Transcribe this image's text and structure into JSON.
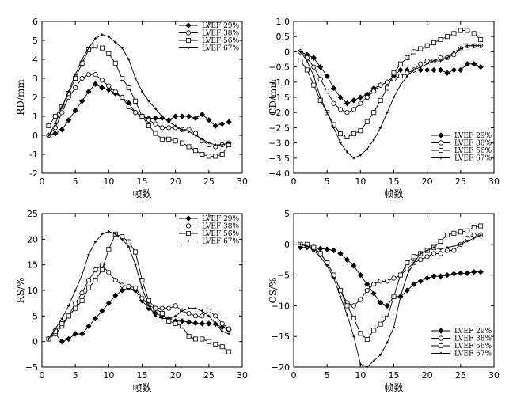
{
  "chart_data": [
    {
      "type": "line",
      "xlabel": "帧数",
      "ylabel": "RD/mm",
      "xlim": [
        0,
        30
      ],
      "ylim": [
        -2,
        6
      ],
      "xticks": [
        0,
        5,
        10,
        15,
        20,
        25,
        30
      ],
      "yticks": [
        -2,
        -1,
        0,
        1,
        2,
        3,
        4,
        5,
        6
      ],
      "legend_position": "top-right",
      "series": [
        {
          "name": "LVEF 29%",
          "marker": "filled-diamond",
          "x": [
            1,
            2,
            3,
            4,
            5,
            6,
            7,
            8,
            9,
            10,
            11,
            12,
            13,
            14,
            15,
            16,
            17,
            18,
            19,
            20,
            21,
            22,
            23,
            24,
            25,
            26,
            27,
            28
          ],
          "y": [
            0,
            0.1,
            0.3,
            0.8,
            1.3,
            1.8,
            2.3,
            2.7,
            2.5,
            2.4,
            2.2,
            2.0,
            1.7,
            1.2,
            1.0,
            0.9,
            0.9,
            0.9,
            0.8,
            1.0,
            1.0,
            1.0,
            0.9,
            1.1,
            0.8,
            0.5,
            0.6,
            0.7
          ]
        },
        {
          "name": "LVEF 38%",
          "marker": "open-circle",
          "x": [
            1,
            2,
            3,
            4,
            5,
            6,
            7,
            8,
            9,
            10,
            11,
            12,
            13,
            14,
            15,
            16,
            17,
            18,
            19,
            20,
            21,
            22,
            23,
            24,
            25,
            26,
            27,
            28
          ],
          "y": [
            0,
            0.4,
            1.2,
            2.0,
            2.5,
            3.0,
            3.2,
            3.2,
            2.9,
            2.6,
            2.3,
            2.0,
            1.5,
            1.2,
            1.0,
            0.8,
            0.6,
            0.4,
            0.4,
            0.4,
            0.3,
            0.3,
            0.1,
            -0.3,
            -0.5,
            -0.6,
            -0.5,
            -0.4
          ]
        },
        {
          "name": "LVEF 56%",
          "marker": "open-square",
          "x": [
            1,
            2,
            3,
            4,
            5,
            6,
            7,
            8,
            9,
            10,
            11,
            12,
            13,
            14,
            15,
            16,
            17,
            18,
            19,
            20,
            21,
            22,
            23,
            24,
            25,
            26,
            27,
            28
          ],
          "y": [
            0.5,
            1.0,
            1.5,
            2.2,
            3.0,
            3.8,
            4.5,
            4.7,
            4.6,
            4.3,
            3.8,
            3.0,
            2.5,
            1.8,
            1.0,
            0.5,
            0.1,
            -0.2,
            -0.2,
            -0.3,
            -0.4,
            -0.6,
            -0.8,
            -1.0,
            -1.1,
            -1.1,
            -1.0,
            -0.5
          ]
        },
        {
          "name": "LVEF 67%",
          "marker": "plus",
          "x": [
            1,
            2,
            3,
            4,
            5,
            6,
            7,
            8,
            9,
            10,
            11,
            12,
            13,
            14,
            15,
            16,
            17,
            18,
            19,
            20,
            21,
            22,
            23,
            24,
            25,
            26,
            27,
            28
          ],
          "y": [
            0,
            0.6,
            1.5,
            2.3,
            3.2,
            4.0,
            4.6,
            5.1,
            5.3,
            5.2,
            4.9,
            4.6,
            4.0,
            3.0,
            2.3,
            1.8,
            1.4,
            1.0,
            0.7,
            0.5,
            0.3,
            0.2,
            0.0,
            -0.2,
            -0.4,
            -0.5,
            -0.5,
            -0.4
          ]
        }
      ]
    },
    {
      "type": "line",
      "xlabel": "帧数",
      "ylabel": "CD/mm",
      "xlim": [
        0,
        30
      ],
      "ylim": [
        -4,
        1
      ],
      "xticks": [
        0,
        5,
        10,
        15,
        20,
        25,
        30
      ],
      "yticks": [
        -4.0,
        -3.5,
        -3.0,
        -2.5,
        -2.0,
        -1.5,
        -1.0,
        -0.5,
        0,
        0.5,
        1.0
      ],
      "ytick_labels": [
        "−4.0",
        "−3.5",
        "−3.0",
        "−2.5",
        "−2.0",
        "−1.5",
        "−1.0",
        "−0.5",
        "0",
        "0.5",
        "1.0"
      ],
      "legend_position": "bottom-right",
      "series": [
        {
          "name": "LVEF 29%",
          "marker": "filled-diamond",
          "x": [
            1,
            2,
            3,
            4,
            5,
            6,
            7,
            8,
            9,
            10,
            11,
            12,
            13,
            14,
            15,
            16,
            17,
            18,
            19,
            20,
            21,
            22,
            23,
            24,
            25,
            26,
            27,
            28
          ],
          "y": [
            0,
            -0.1,
            -0.2,
            -0.5,
            -0.8,
            -1.2,
            -1.5,
            -1.7,
            -1.6,
            -1.5,
            -1.4,
            -1.2,
            -1.1,
            -1.0,
            -0.8,
            -0.6,
            -0.6,
            -0.6,
            -0.6,
            -0.6,
            -0.6,
            -0.6,
            -0.7,
            -0.6,
            -0.6,
            -0.4,
            -0.4,
            -0.5
          ]
        },
        {
          "name": "LVEF 38%",
          "marker": "open-circle",
          "x": [
            1,
            2,
            3,
            4,
            5,
            6,
            7,
            8,
            9,
            10,
            11,
            12,
            13,
            14,
            15,
            16,
            17,
            18,
            19,
            20,
            21,
            22,
            23,
            24,
            25,
            26,
            27,
            28
          ],
          "y": [
            0,
            -0.2,
            -0.5,
            -0.9,
            -1.3,
            -1.7,
            -1.9,
            -2.0,
            -1.9,
            -1.7,
            -1.5,
            -1.3,
            -1.1,
            -1.0,
            -0.9,
            -0.8,
            -0.7,
            -0.6,
            -0.4,
            -0.3,
            -0.3,
            -0.2,
            -0.2,
            -0.1,
            0.1,
            0.2,
            0.2,
            0.2
          ]
        },
        {
          "name": "LVEF 56%",
          "marker": "open-square",
          "x": [
            1,
            2,
            3,
            4,
            5,
            6,
            7,
            8,
            9,
            10,
            11,
            12,
            13,
            14,
            15,
            16,
            17,
            18,
            19,
            20,
            21,
            22,
            23,
            24,
            25,
            26,
            27,
            28
          ],
          "y": [
            -0.3,
            -0.6,
            -1.1,
            -1.6,
            -2.0,
            -2.4,
            -2.7,
            -2.8,
            -2.7,
            -2.6,
            -2.3,
            -2.0,
            -1.6,
            -1.2,
            -0.7,
            -0.4,
            -0.2,
            0.0,
            0.1,
            0.2,
            0.3,
            0.4,
            0.5,
            0.6,
            0.7,
            0.7,
            0.6,
            0.4
          ]
        },
        {
          "name": "LVEF 67%",
          "marker": "plus",
          "x": [
            1,
            2,
            3,
            4,
            5,
            6,
            7,
            8,
            9,
            10,
            11,
            12,
            13,
            14,
            15,
            16,
            17,
            18,
            19,
            20,
            21,
            22,
            23,
            24,
            25,
            26,
            27,
            28
          ],
          "y": [
            0,
            -0.3,
            -0.8,
            -1.5,
            -2.0,
            -2.5,
            -3.0,
            -3.3,
            -3.5,
            -3.4,
            -3.2,
            -2.9,
            -2.5,
            -2.0,
            -1.5,
            -1.1,
            -0.8,
            -0.6,
            -0.5,
            -0.4,
            -0.3,
            -0.3,
            -0.2,
            0.0,
            0.1,
            0.2,
            0.2,
            0.2
          ]
        }
      ]
    },
    {
      "type": "line",
      "xlabel": "帧数",
      "ylabel": "RS/%",
      "xlim": [
        0,
        30
      ],
      "ylim": [
        -5,
        25
      ],
      "xticks": [
        0,
        5,
        10,
        15,
        20,
        25,
        30
      ],
      "yticks": [
        -5,
        0,
        5,
        10,
        15,
        20,
        25
      ],
      "ytick_labels": [
        "−5",
        "0",
        "5",
        "10",
        "15",
        "20",
        "25"
      ],
      "legend_position": "top-right",
      "series": [
        {
          "name": "LVEF 29%",
          "marker": "filled-diamond",
          "x": [
            1,
            2,
            3,
            4,
            5,
            6,
            7,
            8,
            9,
            10,
            11,
            12,
            13,
            14,
            15,
            16,
            17,
            18,
            19,
            20,
            21,
            22,
            23,
            24,
            25,
            26,
            27,
            28
          ],
          "y": [
            0.5,
            1.5,
            0,
            0.5,
            1.5,
            1.5,
            3.0,
            4.5,
            6.0,
            7.5,
            9.0,
            10.0,
            10.5,
            10.0,
            8.0,
            6.5,
            5.5,
            5.0,
            4.5,
            4.0,
            4.0,
            3.8,
            3.6,
            3.5,
            3.5,
            3.4,
            2.8,
            2.3
          ]
        },
        {
          "name": "LVEF 38%",
          "marker": "open-circle",
          "x": [
            1,
            2,
            3,
            4,
            5,
            6,
            7,
            8,
            9,
            10,
            11,
            12,
            13,
            14,
            15,
            16,
            17,
            18,
            19,
            20,
            21,
            22,
            23,
            24,
            25,
            26,
            27,
            28
          ],
          "y": [
            0.5,
            1.5,
            3.0,
            5.0,
            7.5,
            9.5,
            12.0,
            14.0,
            15.0,
            13.5,
            12.0,
            11.0,
            10.8,
            10.5,
            8.5,
            7.0,
            6.5,
            6.5,
            6.5,
            7.0,
            6.0,
            5.5,
            5.0,
            5.0,
            6.0,
            5.0,
            3.5,
            2.5
          ]
        },
        {
          "name": "LVEF 56%",
          "marker": "open-square",
          "x": [
            1,
            2,
            3,
            4,
            5,
            6,
            7,
            8,
            9,
            10,
            11,
            12,
            13,
            14,
            15,
            16,
            17,
            18,
            19,
            20,
            21,
            22,
            23,
            24,
            25,
            26,
            27,
            28
          ],
          "y": [
            0.5,
            2.0,
            3.5,
            5.0,
            6.5,
            8.0,
            10.5,
            12.0,
            14.0,
            18.0,
            21.0,
            20.5,
            19.5,
            17.5,
            12.0,
            8.0,
            6.5,
            5.5,
            4.0,
            3.5,
            3.0,
            1.0,
            0.5,
            0.5,
            0,
            -0.5,
            -1.0,
            -2.0
          ]
        },
        {
          "name": "LVEF 67%",
          "marker": "plus",
          "x": [
            1,
            2,
            3,
            4,
            5,
            6,
            7,
            8,
            9,
            10,
            11,
            12,
            13,
            14,
            15,
            16,
            17,
            18,
            19,
            20,
            21,
            22,
            23,
            24,
            25,
            26,
            27,
            28
          ],
          "y": [
            0.5,
            2.5,
            4.5,
            7.0,
            10.0,
            13.0,
            17.0,
            19.5,
            21.0,
            21.5,
            21.0,
            20.0,
            18.5,
            15.0,
            10.5,
            7.0,
            5.0,
            4.5,
            4.5,
            5.0,
            6.0,
            6.5,
            6.5,
            6.0,
            5.0,
            3.5,
            2.0,
            1.5
          ]
        }
      ]
    },
    {
      "type": "line",
      "xlabel": "帧数",
      "ylabel": "CS/%",
      "xlim": [
        0,
        30
      ],
      "ylim": [
        -20,
        5
      ],
      "xticks": [
        0,
        5,
        10,
        15,
        20,
        25,
        30
      ],
      "yticks": [
        -20,
        -15,
        -10,
        -5,
        0,
        5
      ],
      "ytick_labels": [
        "−20",
        "−15",
        "−10",
        "−5",
        "0",
        "5"
      ],
      "legend_position": "bottom-right",
      "series": [
        {
          "name": "LVEF 29%",
          "marker": "filled-diamond",
          "x": [
            1,
            2,
            3,
            4,
            5,
            6,
            7,
            8,
            9,
            10,
            11,
            12,
            13,
            14,
            15,
            16,
            17,
            18,
            19,
            20,
            21,
            22,
            23,
            24,
            25,
            26,
            27,
            28
          ],
          "y": [
            -0.5,
            -0.5,
            -0.5,
            -0.7,
            -0.8,
            -1.0,
            -1.5,
            -2.5,
            -3.5,
            -5.0,
            -6.5,
            -8.0,
            -9.5,
            -10.0,
            -8.5,
            -8.5,
            -7.5,
            -6.5,
            -6.0,
            -5.5,
            -5.2,
            -5.2,
            -5.0,
            -4.8,
            -4.7,
            -4.7,
            -4.5,
            -4.5
          ]
        },
        {
          "name": "LVEF 38%",
          "marker": "open-circle",
          "x": [
            1,
            2,
            3,
            4,
            5,
            6,
            7,
            8,
            9,
            10,
            11,
            12,
            13,
            14,
            15,
            16,
            17,
            18,
            19,
            20,
            21,
            22,
            23,
            24,
            25,
            26,
            27,
            28
          ],
          "y": [
            0,
            -0.3,
            -0.8,
            -1.5,
            -3.0,
            -5.0,
            -7.5,
            -9.5,
            -10.0,
            -9.0,
            -7.5,
            -6.5,
            -6.0,
            -6.0,
            -5.5,
            -5.0,
            -4.0,
            -3.0,
            -2.5,
            -2.0,
            -1.5,
            -1.5,
            -1.0,
            -1.0,
            0,
            1.0,
            1.5,
            1.5
          ]
        },
        {
          "name": "LVEF 56%",
          "marker": "open-square",
          "x": [
            1,
            2,
            3,
            4,
            5,
            6,
            7,
            8,
            9,
            10,
            11,
            12,
            13,
            14,
            15,
            16,
            17,
            18,
            19,
            20,
            21,
            22,
            23,
            24,
            25,
            26,
            27,
            28
          ],
          "y": [
            0,
            0,
            -0.5,
            -1.5,
            -3.0,
            -5.0,
            -7.5,
            -10.0,
            -12.0,
            -14.5,
            -15.5,
            -14.0,
            -13.0,
            -12.0,
            -8.5,
            -5.0,
            -3.0,
            -2.0,
            -1.5,
            -1.0,
            -0.5,
            0.5,
            1.5,
            1.8,
            2.0,
            2.2,
            2.8,
            3.0
          ]
        },
        {
          "name": "LVEF 67%",
          "marker": "plus",
          "x": [
            1,
            2,
            3,
            4,
            5,
            6,
            7,
            8,
            9,
            10,
            11,
            12,
            13,
            14,
            15,
            16,
            17,
            18,
            19,
            20,
            21,
            22,
            23,
            24,
            25,
            26,
            27,
            28
          ],
          "y": [
            0,
            -0.3,
            -1.0,
            -2.0,
            -3.5,
            -5.5,
            -8.5,
            -11.5,
            -15.0,
            -19.5,
            -20.0,
            -19.0,
            -18.0,
            -16.0,
            -13.5,
            -8.5,
            -5.0,
            -3.0,
            -1.5,
            -1.0,
            -0.5,
            -0.8,
            -0.5,
            -0.3,
            0,
            0.5,
            1.0,
            1.5
          ]
        }
      ]
    }
  ]
}
